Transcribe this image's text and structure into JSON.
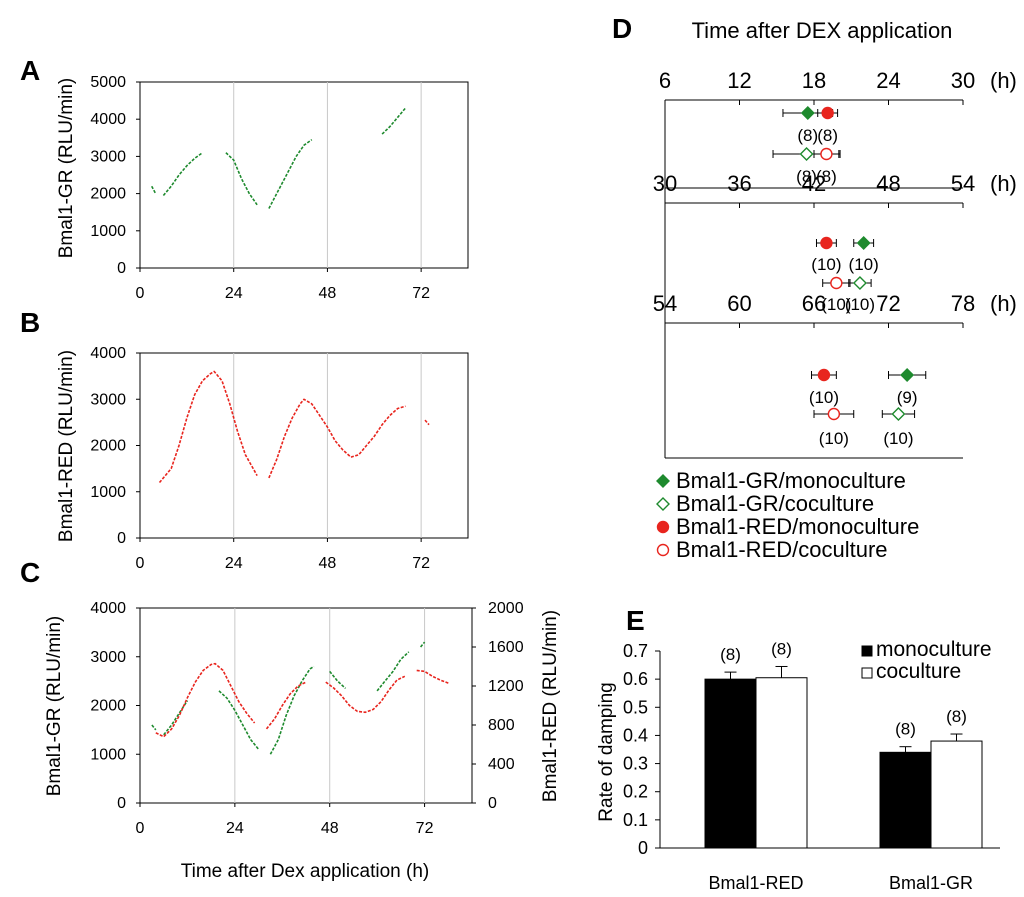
{
  "colors": {
    "green": "#1e8a2e",
    "red": "#e8251e",
    "grid": "#c8c8c8"
  },
  "panels": {
    "A": {
      "letter": "A",
      "ylabel": "Bmal1-GR (RLU/min)",
      "xticks": [
        "0",
        "24",
        "48",
        "72"
      ],
      "yticks": [
        "0",
        "1000",
        "2000",
        "3000",
        "4000",
        "5000"
      ]
    },
    "B": {
      "letter": "B",
      "ylabel": "Bmal1-RED (RLU/min)",
      "xticks": [
        "0",
        "24",
        "48",
        "72"
      ],
      "yticks": [
        "0",
        "1000",
        "2000",
        "3000",
        "4000"
      ]
    },
    "C": {
      "letter": "C",
      "ylabel": "Bmal1-GR (RLU/min)",
      "y2label": "Bmal1-RED (RLU/min)",
      "xlabel": "Time after Dex application (h)",
      "xticks": [
        "0",
        "24",
        "48",
        "72"
      ],
      "yticks": [
        "0",
        "1000",
        "2000",
        "3000",
        "4000"
      ],
      "y2ticks": [
        "0",
        "400",
        "800",
        "1200",
        "1600",
        "2000"
      ]
    },
    "D": {
      "letter": "D",
      "title": "Time after DEX application",
      "unit": "(h)",
      "rows": [
        {
          "ticks": [
            "6",
            "12",
            "18",
            "24",
            "30"
          ]
        },
        {
          "ticks": [
            "30",
            "36",
            "42",
            "48",
            "54"
          ]
        },
        {
          "ticks": [
            "54",
            "60",
            "66",
            "72",
            "78"
          ]
        }
      ],
      "legend": [
        "Bmal1-GR/monoculture",
        "Bmal1-GR/coculture",
        "Bmal1-RED/monoculture",
        "Bmal1-RED/coculture"
      ]
    },
    "E": {
      "letter": "E",
      "ylabel": "Rate of damping",
      "yticks": [
        "0",
        "0.1",
        "0.2",
        "0.3",
        "0.4",
        "0.5",
        "0.6",
        "0.7"
      ],
      "legend": [
        "monoculture",
        "coculture"
      ]
    }
  },
  "chart_data": [
    {
      "panel": "A",
      "type": "line",
      "xlim": [
        0,
        84
      ],
      "ylim": [
        0,
        5000
      ],
      "xlabel": "",
      "ylabel": "Bmal1-GR (RLU/min)",
      "series": [
        {
          "color": "#1e8a2e",
          "segments": [
            [
              [
                3,
                2200
              ],
              [
                4,
                2000
              ]
            ],
            [
              [
                6,
                1950
              ],
              [
                8,
                2200
              ],
              [
                10,
                2500
              ],
              [
                12,
                2750
              ],
              [
                14,
                2950
              ],
              [
                16,
                3100
              ]
            ],
            [
              [
                22,
                3100
              ],
              [
                24,
                2900
              ],
              [
                26,
                2400
              ],
              [
                28,
                2000
              ],
              [
                30,
                1700
              ]
            ],
            [
              [
                33,
                1600
              ],
              [
                35,
                2000
              ],
              [
                38,
                2600
              ],
              [
                40,
                3000
              ],
              [
                42,
                3300
              ],
              [
                44,
                3450
              ]
            ],
            [
              [
                62,
                3600
              ],
              [
                64,
                3800
              ],
              [
                66,
                4050
              ],
              [
                68,
                4300
              ]
            ]
          ]
        }
      ]
    },
    {
      "panel": "B",
      "type": "line",
      "xlim": [
        0,
        84
      ],
      "ylim": [
        0,
        4000
      ],
      "xlabel": "",
      "ylabel": "Bmal1-RED (RLU/min)",
      "series": [
        {
          "color": "#e8251e",
          "segments": [
            [
              [
                5,
                1200
              ],
              [
                8,
                1500
              ],
              [
                10,
                2000
              ],
              [
                12,
                2600
              ],
              [
                14,
                3100
              ],
              [
                16,
                3400
              ],
              [
                18,
                3550
              ],
              [
                19,
                3600
              ],
              [
                21,
                3400
              ],
              [
                23,
                2900
              ],
              [
                25,
                2300
              ],
              [
                27,
                1800
              ],
              [
                29,
                1500
              ],
              [
                30,
                1350
              ]
            ],
            [
              [
                33,
                1300
              ],
              [
                35,
                1700
              ],
              [
                37,
                2200
              ],
              [
                39,
                2600
              ],
              [
                41,
                2900
              ],
              [
                42,
                3000
              ],
              [
                44,
                2900
              ],
              [
                46,
                2650
              ],
              [
                48,
                2400
              ],
              [
                50,
                2100
              ],
              [
                52,
                1900
              ],
              [
                54,
                1750
              ],
              [
                56,
                1800
              ],
              [
                58,
                2000
              ],
              [
                60,
                2200
              ],
              [
                62,
                2450
              ],
              [
                64,
                2650
              ],
              [
                66,
                2800
              ],
              [
                68,
                2850
              ]
            ],
            [
              [
                73,
                2550
              ],
              [
                74,
                2450
              ]
            ]
          ]
        }
      ]
    },
    {
      "panel": "C",
      "type": "line",
      "xlim": [
        0,
        84
      ],
      "ylim": [
        0,
        4000
      ],
      "y2lim": [
        0,
        2000
      ],
      "xlabel": "Time after Dex application (h)",
      "ylabel": "Bmal1-GR (RLU/min)",
      "y2label": "Bmal1-RED (RLU/min)",
      "series": [
        {
          "color": "#1e8a2e",
          "axis": "left",
          "segments": [
            [
              [
                3,
                1600
              ],
              [
                4,
                1500
              ]
            ],
            [
              [
                6,
                1400
              ],
              [
                8,
                1600
              ],
              [
                10,
                1850
              ],
              [
                12,
                2100
              ]
            ],
            [
              [
                20,
                2300
              ],
              [
                22,
                2150
              ],
              [
                24,
                1900
              ],
              [
                26,
                1600
              ],
              [
                28,
                1300
              ],
              [
                30,
                1100
              ]
            ],
            [
              [
                33,
                1000
              ],
              [
                35,
                1300
              ],
              [
                37,
                1800
              ],
              [
                39,
                2200
              ],
              [
                41,
                2500
              ],
              [
                43,
                2750
              ],
              [
                44,
                2800
              ]
            ],
            [
              [
                48,
                2700
              ],
              [
                50,
                2500
              ],
              [
                52,
                2350
              ]
            ],
            [
              [
                60,
                2300
              ],
              [
                62,
                2500
              ],
              [
                64,
                2700
              ],
              [
                66,
                2950
              ],
              [
                68,
                3100
              ]
            ],
            [
              [
                71,
                3200
              ],
              [
                72,
                3300
              ]
            ]
          ]
        },
        {
          "color": "#e8251e",
          "axis": "right",
          "segments": [
            [
              [
                4,
                720
              ],
              [
                6,
                680
              ],
              [
                8,
                760
              ],
              [
                10,
                900
              ],
              [
                12,
                1080
              ],
              [
                14,
                1240
              ],
              [
                16,
                1360
              ],
              [
                18,
                1420
              ],
              [
                19,
                1430
              ],
              [
                21,
                1360
              ],
              [
                23,
                1200
              ],
              [
                25,
                1040
              ],
              [
                27,
                920
              ],
              [
                29,
                820
              ]
            ],
            [
              [
                32,
                760
              ],
              [
                34,
                860
              ],
              [
                36,
                1000
              ],
              [
                38,
                1120
              ],
              [
                40,
                1200
              ],
              [
                42,
                1240
              ]
            ],
            [
              [
                47,
                1240
              ],
              [
                49,
                1180
              ],
              [
                51,
                1100
              ],
              [
                53,
                1000
              ],
              [
                55,
                940
              ],
              [
                57,
                930
              ],
              [
                59,
                960
              ],
              [
                61,
                1040
              ],
              [
                63,
                1160
              ],
              [
                65,
                1260
              ],
              [
                67,
                1300
              ]
            ],
            [
              [
                70,
                1360
              ],
              [
                72,
                1350
              ],
              [
                74,
                1300
              ],
              [
                76,
                1260
              ],
              [
                78,
                1230
              ]
            ]
          ]
        }
      ]
    },
    {
      "panel": "D",
      "type": "scatter",
      "title": "Time after DEX application",
      "rows": [
        {
          "xlim": [
            6,
            30
          ],
          "points": [
            {
              "series": "Bmal1-GR/monoculture",
              "mean": 17.5,
              "err": 2.0,
              "n": "(8)"
            },
            {
              "series": "Bmal1-RED/monoculture",
              "mean": 19.1,
              "err": 0.8,
              "n": "(8)"
            },
            {
              "series": "Bmal1-GR/coculture",
              "mean": 17.4,
              "err": 2.7,
              "n": "(8)"
            },
            {
              "series": "Bmal1-RED/coculture",
              "mean": 19.0,
              "err": 1.0,
              "n": "(8)"
            }
          ]
        },
        {
          "xlim": [
            30,
            54
          ],
          "points": [
            {
              "series": "Bmal1-RED/monoculture",
              "mean": 43.0,
              "err": 0.8,
              "n": "(10)"
            },
            {
              "series": "Bmal1-GR/monoculture",
              "mean": 46.0,
              "err": 0.8,
              "n": "(10)"
            },
            {
              "series": "Bmal1-RED/coculture",
              "mean": 43.8,
              "err": 1.1,
              "n": "(10)"
            },
            {
              "series": "Bmal1-GR/coculture",
              "mean": 45.7,
              "err": 0.9,
              "n": "(10)"
            }
          ]
        },
        {
          "xlim": [
            54,
            78
          ],
          "points": [
            {
              "series": "Bmal1-RED/monoculture",
              "mean": 66.8,
              "err": 1.0,
              "n": "(10)"
            },
            {
              "series": "Bmal1-GR/monoculture",
              "mean": 73.5,
              "err": 1.5,
              "n": "(9)"
            },
            {
              "series": "Bmal1-RED/coculture",
              "mean": 67.6,
              "err": 1.6,
              "n": "(10)"
            },
            {
              "series": "Bmal1-GR/coculture",
              "mean": 72.8,
              "err": 1.3,
              "n": "(10)"
            }
          ]
        }
      ]
    },
    {
      "panel": "E",
      "type": "bar",
      "ylabel": "Rate of damping",
      "ylim": [
        0,
        0.7
      ],
      "categories": [
        "Bmal1-RED",
        "Bmal1-GR"
      ],
      "series": [
        {
          "name": "monoculture",
          "values": [
            0.6,
            0.34
          ],
          "errors": [
            0.025,
            0.02
          ],
          "n": [
            "(8)",
            "(8)"
          ]
        },
        {
          "name": "coculture",
          "values": [
            0.605,
            0.38
          ],
          "errors": [
            0.04,
            0.025
          ],
          "n": [
            "(8)",
            "(8)"
          ]
        }
      ]
    }
  ]
}
